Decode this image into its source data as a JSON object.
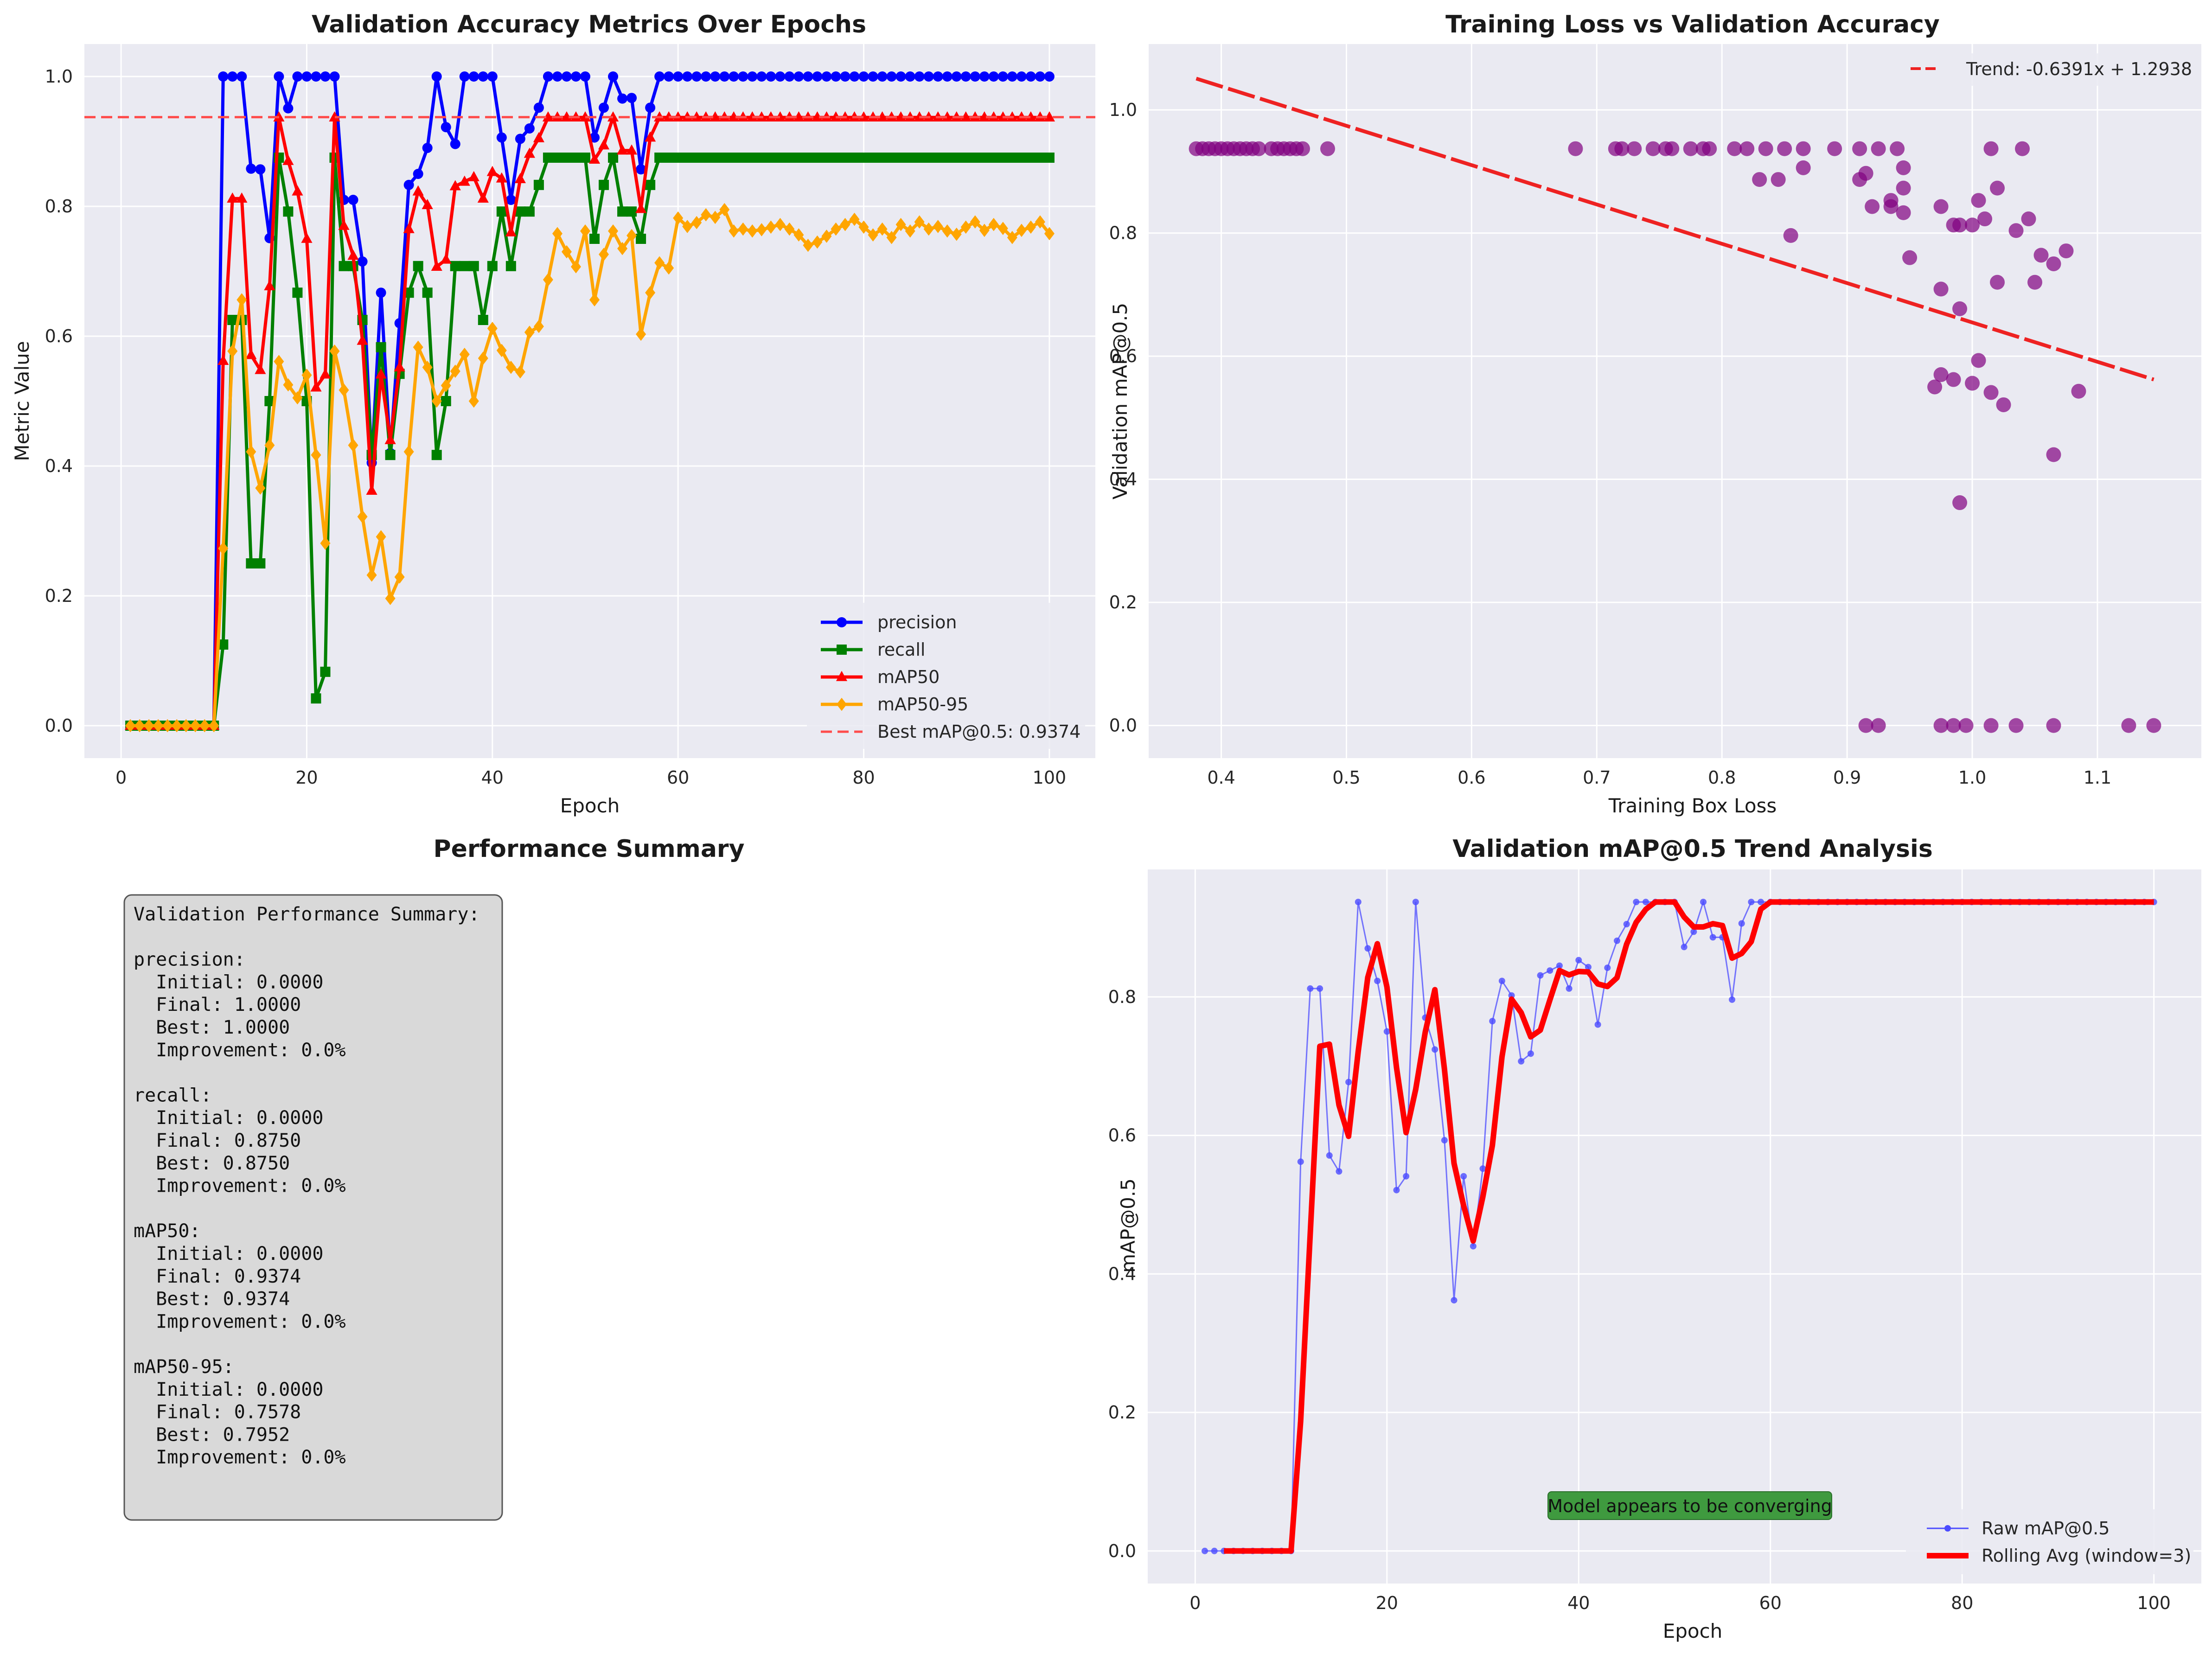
{
  "colors": {
    "panel_bg": "#eaeaf2",
    "grid": "#ffffff",
    "precision": "#0000ff",
    "recall": "#008000",
    "map50": "#ff0000",
    "map5095": "#ffa500",
    "best_line": "#ff4c4c",
    "scatter": "#800080",
    "trend": "#ee2222",
    "raw": "#4b4bff",
    "rolling": "#ff0000",
    "summary_box": "#d9d9d9",
    "note_box": "#3f9a3f"
  },
  "chart_data": [
    {
      "id": "panel1",
      "type": "line",
      "title": "Validation Accuracy Metrics Over Epochs",
      "xlabel": "Epoch",
      "ylabel": "Metric Value",
      "xlim": [
        -3.95,
        104.95
      ],
      "ylim": [
        -0.05,
        1.05
      ],
      "xticks": [
        0,
        20,
        40,
        60,
        80,
        100
      ],
      "yticks": [
        0.0,
        0.2,
        0.4,
        0.6,
        0.8,
        1.0
      ],
      "grid": true,
      "legend_position": "lower right",
      "x": [
        1,
        2,
        3,
        4,
        5,
        6,
        7,
        8,
        9,
        10,
        11,
        12,
        13,
        14,
        15,
        16,
        17,
        18,
        19,
        20,
        21,
        22,
        23,
        24,
        25,
        26,
        27,
        28,
        29,
        30,
        31,
        32,
        33,
        34,
        35,
        36,
        37,
        38,
        39,
        40,
        41,
        42,
        43,
        44,
        45,
        46,
        47,
        48,
        49,
        50,
        51,
        52,
        53,
        54,
        55,
        56,
        57,
        58,
        59,
        60,
        61,
        62,
        63,
        64,
        65,
        66,
        67,
        68,
        69,
        70,
        71,
        72,
        73,
        74,
        75,
        76,
        77,
        78,
        79,
        80,
        81,
        82,
        83,
        84,
        85,
        86,
        87,
        88,
        89,
        90,
        91,
        92,
        93,
        94,
        95,
        96,
        97,
        98,
        99,
        100
      ],
      "series": [
        {
          "name": "precision",
          "marker": "circle",
          "values": [
            0,
            0,
            0,
            0,
            0,
            0,
            0,
            0,
            0,
            0,
            1.0,
            1.0,
            1.0,
            0.858,
            0.857,
            0.751,
            1.0,
            0.951,
            1.0,
            1.0,
            1.0,
            1.0,
            1.0,
            0.81,
            0.81,
            0.715,
            0.405,
            0.667,
            0.42,
            0.62,
            0.833,
            0.85,
            0.89,
            1.0,
            0.922,
            0.896,
            1.0,
            1.0,
            1.0,
            1.0,
            0.906,
            0.81,
            0.904,
            0.92,
            0.952,
            1.0,
            1.0,
            1.0,
            1.0,
            1.0,
            0.906,
            0.952,
            1.0,
            0.966,
            0.967,
            0.857,
            0.952,
            1.0,
            1.0,
            1.0,
            1.0,
            1.0,
            1.0,
            1.0,
            1.0,
            1.0,
            1.0,
            1.0,
            1.0,
            1.0,
            1.0,
            1.0,
            1.0,
            1.0,
            1.0,
            1.0,
            1.0,
            1.0,
            1.0,
            1.0,
            1.0,
            1.0,
            1.0,
            1.0,
            1.0,
            1.0,
            1.0,
            1.0,
            1.0,
            1.0,
            1.0,
            1.0,
            1.0,
            1.0,
            1.0,
            1.0,
            1.0,
            1.0,
            1.0,
            1.0
          ]
        },
        {
          "name": "recall",
          "marker": "square",
          "values": [
            0,
            0,
            0,
            0,
            0,
            0,
            0,
            0,
            0,
            0,
            0.125,
            0.625,
            0.625,
            0.25,
            0.25,
            0.5,
            0.875,
            0.792,
            0.667,
            0.5,
            0.042,
            0.083,
            0.875,
            0.708,
            0.708,
            0.625,
            0.417,
            0.583,
            0.417,
            0.542,
            0.667,
            0.708,
            0.667,
            0.417,
            0.5,
            0.708,
            0.708,
            0.708,
            0.625,
            0.708,
            0.792,
            0.708,
            0.792,
            0.792,
            0.833,
            0.875,
            0.875,
            0.875,
            0.875,
            0.875,
            0.75,
            0.833,
            0.875,
            0.792,
            0.792,
            0.75,
            0.833,
            0.875,
            0.875,
            0.875,
            0.875,
            0.875,
            0.875,
            0.875,
            0.875,
            0.875,
            0.875,
            0.875,
            0.875,
            0.875,
            0.875,
            0.875,
            0.875,
            0.875,
            0.875,
            0.875,
            0.875,
            0.875,
            0.875,
            0.875,
            0.875,
            0.875,
            0.875,
            0.875,
            0.875,
            0.875,
            0.875,
            0.875,
            0.875,
            0.875,
            0.875,
            0.875,
            0.875,
            0.875,
            0.875,
            0.875,
            0.875,
            0.875,
            0.875,
            0.875
          ]
        },
        {
          "name": "mAP50",
          "marker": "triangle",
          "values": [
            0,
            0,
            0,
            0,
            0,
            0,
            0,
            0,
            0,
            0,
            0.562,
            0.812,
            0.812,
            0.571,
            0.548,
            0.677,
            0.937,
            0.87,
            0.823,
            0.75,
            0.521,
            0.541,
            0.937,
            0.77,
            0.724,
            0.593,
            0.362,
            0.541,
            0.44,
            0.552,
            0.765,
            0.823,
            0.802,
            0.707,
            0.718,
            0.831,
            0.838,
            0.845,
            0.812,
            0.853,
            0.843,
            0.76,
            0.842,
            0.881,
            0.905,
            0.937,
            0.937,
            0.937,
            0.937,
            0.937,
            0.872,
            0.894,
            0.937,
            0.886,
            0.886,
            0.796,
            0.906,
            0.937,
            0.937,
            0.937,
            0.937,
            0.937,
            0.937,
            0.937,
            0.937,
            0.937,
            0.937,
            0.937,
            0.937,
            0.937,
            0.937,
            0.937,
            0.937,
            0.937,
            0.937,
            0.937,
            0.937,
            0.937,
            0.937,
            0.937,
            0.937,
            0.937,
            0.937,
            0.937,
            0.937,
            0.937,
            0.937,
            0.937,
            0.937,
            0.937,
            0.937,
            0.937,
            0.937,
            0.937,
            0.937,
            0.937,
            0.937,
            0.937,
            0.937,
            0.937
          ]
        },
        {
          "name": "mAP50-95",
          "marker": "diamond",
          "values": [
            0,
            0,
            0,
            0,
            0,
            0,
            0,
            0,
            0,
            0,
            0.273,
            0.577,
            0.656,
            0.422,
            0.366,
            0.432,
            0.561,
            0.525,
            0.505,
            0.54,
            0.417,
            0.281,
            0.577,
            0.517,
            0.432,
            0.322,
            0.232,
            0.291,
            0.196,
            0.229,
            0.422,
            0.583,
            0.552,
            0.5,
            0.524,
            0.546,
            0.572,
            0.5,
            0.566,
            0.612,
            0.578,
            0.552,
            0.545,
            0.606,
            0.615,
            0.687,
            0.758,
            0.73,
            0.707,
            0.762,
            0.656,
            0.726,
            0.762,
            0.735,
            0.755,
            0.603,
            0.667,
            0.713,
            0.705,
            0.782,
            0.769,
            0.775,
            0.787,
            0.783,
            0.795,
            0.762,
            0.765,
            0.762,
            0.764,
            0.768,
            0.772,
            0.765,
            0.756,
            0.74,
            0.745,
            0.754,
            0.765,
            0.772,
            0.78,
            0.768,
            0.756,
            0.765,
            0.752,
            0.772,
            0.762,
            0.776,
            0.765,
            0.769,
            0.762,
            0.757,
            0.768,
            0.776,
            0.763,
            0.772,
            0.766,
            0.752,
            0.763,
            0.768,
            0.776,
            0.758
          ]
        }
      ],
      "reference_line": {
        "name": "Best mAP@0.5: 0.9374",
        "y": 0.9374
      }
    },
    {
      "id": "panel2",
      "type": "scatter",
      "title": "Training Loss vs Validation Accuracy",
      "xlabel": "Training Box Loss",
      "ylabel": "Validation mAP@0.5",
      "xlim": [
        0.342,
        1.183
      ],
      "ylim": [
        -0.053,
        1.107
      ],
      "xticks": [
        0.4,
        0.5,
        0.6,
        0.7,
        0.8,
        0.9,
        1.0,
        1.1
      ],
      "yticks": [
        0.0,
        0.2,
        0.4,
        0.6,
        0.8,
        1.0
      ],
      "grid": true,
      "legend_position": "upper right",
      "trend": {
        "name": "Trend: -0.6391x + 1.2938",
        "slope": -0.6391,
        "intercept": 1.2938,
        "x_range": [
          0.38,
          1.145
        ]
      },
      "points": [
        [
          0.38,
          0.937
        ],
        [
          0.385,
          0.937
        ],
        [
          0.39,
          0.937
        ],
        [
          0.395,
          0.937
        ],
        [
          0.4,
          0.937
        ],
        [
          0.405,
          0.937
        ],
        [
          0.41,
          0.937
        ],
        [
          0.415,
          0.937
        ],
        [
          0.42,
          0.937
        ],
        [
          0.425,
          0.937
        ],
        [
          0.43,
          0.937
        ],
        [
          0.44,
          0.937
        ],
        [
          0.445,
          0.937
        ],
        [
          0.45,
          0.937
        ],
        [
          0.455,
          0.937
        ],
        [
          0.46,
          0.937
        ],
        [
          0.465,
          0.937
        ],
        [
          0.485,
          0.937
        ],
        [
          0.683,
          0.937
        ],
        [
          0.715,
          0.937
        ],
        [
          0.72,
          0.937
        ],
        [
          0.73,
          0.937
        ],
        [
          0.745,
          0.937
        ],
        [
          0.755,
          0.937
        ],
        [
          0.76,
          0.937
        ],
        [
          0.775,
          0.937
        ],
        [
          0.785,
          0.937
        ],
        [
          0.79,
          0.937
        ],
        [
          0.81,
          0.937
        ],
        [
          0.82,
          0.937
        ],
        [
          0.835,
          0.937
        ],
        [
          0.85,
          0.937
        ],
        [
          0.865,
          0.937
        ],
        [
          0.89,
          0.937
        ],
        [
          0.91,
          0.937
        ],
        [
          0.925,
          0.937
        ],
        [
          0.94,
          0.937
        ],
        [
          0.83,
          0.887
        ],
        [
          0.845,
          0.887
        ],
        [
          0.865,
          0.906
        ],
        [
          0.855,
          0.796
        ],
        [
          0.91,
          0.887
        ],
        [
          0.915,
          0.897
        ],
        [
          0.92,
          0.843
        ],
        [
          0.935,
          0.853
        ],
        [
          0.935,
          0.843
        ],
        [
          0.945,
          0.906
        ],
        [
          0.945,
          0.873
        ],
        [
          0.945,
          0.833
        ],
        [
          0.95,
          0.76
        ],
        [
          0.975,
          0.843
        ],
        [
          0.985,
          0.813
        ],
        [
          0.99,
          0.813
        ],
        [
          0.975,
          0.709
        ],
        [
          0.99,
          0.677
        ],
        [
          1.0,
          0.813
        ],
        [
          1.005,
          0.853
        ],
        [
          1.01,
          0.823
        ],
        [
          1.015,
          0.937
        ],
        [
          1.02,
          0.873
        ],
        [
          1.02,
          0.72
        ],
        [
          1.035,
          0.804
        ],
        [
          1.04,
          0.937
        ],
        [
          1.045,
          0.823
        ],
        [
          1.05,
          0.72
        ],
        [
          1.055,
          0.764
        ],
        [
          1.065,
          0.75
        ],
        [
          1.075,
          0.771
        ],
        [
          0.97,
          0.55
        ],
        [
          0.975,
          0.57
        ],
        [
          0.985,
          0.562
        ],
        [
          0.99,
          0.362
        ],
        [
          1.0,
          0.556
        ],
        [
          1.005,
          0.593
        ],
        [
          1.015,
          0.541
        ],
        [
          1.025,
          0.521
        ],
        [
          1.065,
          0.44
        ],
        [
          1.085,
          0.543
        ],
        [
          0.915,
          0.0
        ],
        [
          0.925,
          0.0
        ],
        [
          0.975,
          0.0
        ],
        [
          0.985,
          0.0
        ],
        [
          0.995,
          0.0
        ],
        [
          1.015,
          0.0
        ],
        [
          1.035,
          0.0
        ],
        [
          1.065,
          0.0
        ],
        [
          1.125,
          0.0
        ],
        [
          1.145,
          0.0
        ]
      ]
    },
    {
      "id": "panel4",
      "type": "line",
      "title": "Validation mAP@0.5 Trend Analysis",
      "xlabel": "Epoch",
      "ylabel": "mAP@0.5",
      "xlim": [
        -4.95,
        104.95
      ],
      "ylim": [
        -0.047,
        0.984
      ],
      "xticks": [
        0,
        20,
        40,
        60,
        80,
        100
      ],
      "yticks": [
        0.0,
        0.2,
        0.4,
        0.6,
        0.8
      ],
      "grid": true,
      "legend_position": "lower right",
      "series": [
        {
          "name": "Raw mAP@0.5",
          "source": "panel1.mAP50"
        },
        {
          "name": "Rolling Avg (window=3)",
          "window": 3
        }
      ],
      "annotation": "Model appears to be converging"
    }
  ],
  "summary": {
    "title": "Performance Summary",
    "lines": [
      "Validation Performance Summary:",
      "",
      "precision:",
      "  Initial: 0.0000",
      "  Final: 1.0000",
      "  Best: 1.0000",
      "  Improvement: 0.0%",
      "",
      "recall:",
      "  Initial: 0.0000",
      "  Final: 0.8750",
      "  Best: 0.8750",
      "  Improvement: 0.0%",
      "",
      "mAP50:",
      "  Initial: 0.0000",
      "  Final: 0.9374",
      "  Best: 0.9374",
      "  Improvement: 0.0%",
      "",
      "mAP50-95:",
      "  Initial: 0.0000",
      "  Final: 0.7578",
      "  Best: 0.7952",
      "  Improvement: 0.0%"
    ]
  }
}
